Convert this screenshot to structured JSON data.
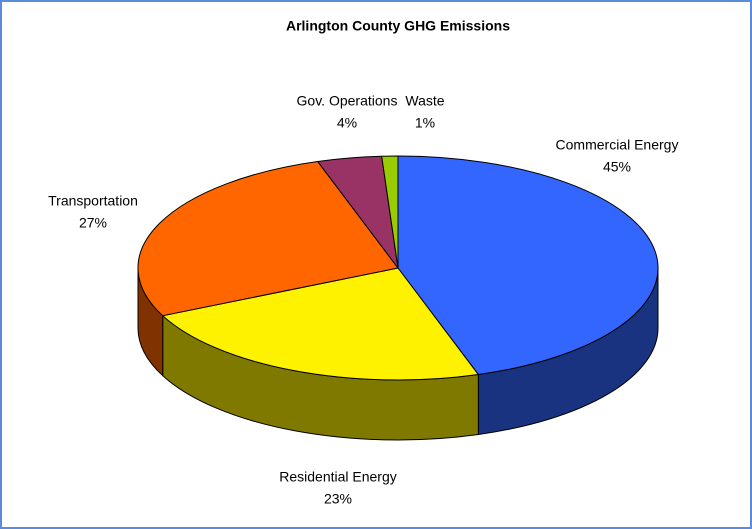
{
  "chart_data": {
    "type": "pie",
    "title": "Arlington County GHG Emissions",
    "categories": [
      "Commercial Energy",
      "Residential Energy",
      "Transportation",
      "Gov. Operations",
      "Waste"
    ],
    "values": [
      45,
      23,
      27,
      4,
      1
    ],
    "value_labels": [
      "45%",
      "23%",
      "27%",
      "4%",
      "1%"
    ],
    "colors": [
      "#3366ff",
      "#fff200",
      "#ff6600",
      "#993366",
      "#99cc00"
    ]
  }
}
